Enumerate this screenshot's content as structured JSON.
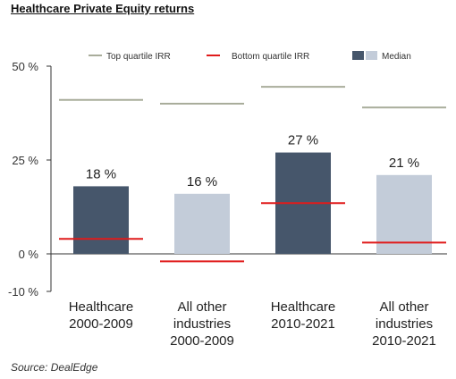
{
  "title": "Healthcare Private Equity returns",
  "source": "Source: DealEdge",
  "chart_data": {
    "type": "bar",
    "title": "Healthcare Private Equity returns",
    "xlabel": "",
    "ylabel": "",
    "ylim": [
      -10,
      50
    ],
    "y_ticks": [
      {
        "value": 50,
        "label": "50 %"
      },
      {
        "value": 25,
        "label": "25 %"
      },
      {
        "value": 0,
        "label": "0 %"
      },
      {
        "value": -10,
        "label": "-10 %"
      }
    ],
    "categories": [
      [
        "Healthcare",
        "2000-2009"
      ],
      [
        "All other",
        "industries",
        "2000-2009"
      ],
      [
        "Healthcare",
        "2010-2021"
      ],
      [
        "All other",
        "industries",
        "2010-2021"
      ]
    ],
    "legend_position": "top",
    "series": [
      {
        "name": "Top quartile IRR",
        "mark": "line",
        "color": "#a9ad9b",
        "values": [
          41,
          40,
          44.5,
          39
        ]
      },
      {
        "name": "Bottom quartile IRR",
        "mark": "line",
        "color": "#e01b1b",
        "values": [
          4,
          -2,
          13.5,
          3
        ]
      },
      {
        "name": "Median",
        "mark": "bar",
        "values": [
          18,
          16,
          27,
          21
        ],
        "labels": [
          "18 %",
          "16 %",
          "27 %",
          "21 %"
        ],
        "colors": [
          "#46566b",
          "#c3ccd9",
          "#46566b",
          "#c3ccd9"
        ]
      }
    ],
    "grid": false
  }
}
